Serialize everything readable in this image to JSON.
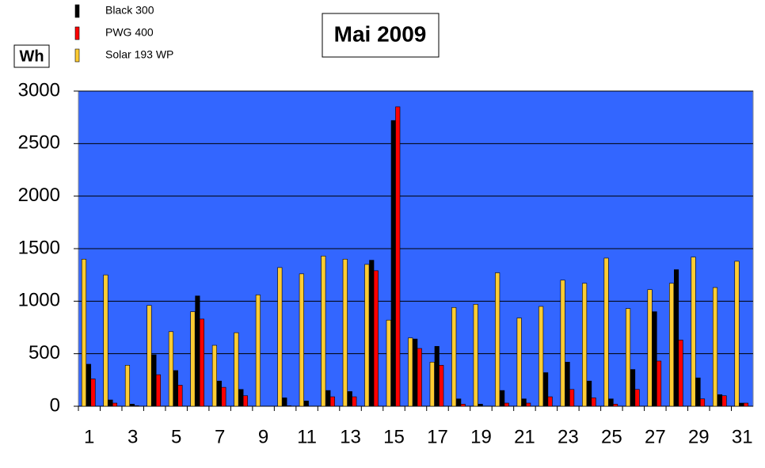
{
  "chart_data": {
    "type": "bar",
    "title": "Mai 2009",
    "y_label": "Wh",
    "categories": [
      "1",
      null,
      "3",
      null,
      "5",
      null,
      "7",
      null,
      "9",
      null,
      "11",
      null,
      "13",
      null,
      "15",
      null,
      "17",
      null,
      "19",
      null,
      "21",
      null,
      "23",
      null,
      "25",
      null,
      "27",
      null,
      "29",
      null,
      "31"
    ],
    "series": [
      {
        "name": "Black 300",
        "color": "#000000",
        "values": [
          400,
          60,
          20,
          490,
          340,
          1050,
          240,
          160,
          0,
          80,
          50,
          150,
          140,
          1390,
          2720,
          640,
          570,
          70,
          20,
          150,
          70,
          320,
          420,
          240,
          70,
          350,
          900,
          1300,
          270,
          110,
          30
        ]
      },
      {
        "name": "PWG 400",
        "color": "#ff0000",
        "values": [
          260,
          30,
          5,
          300,
          200,
          830,
          180,
          100,
          0,
          5,
          0,
          90,
          90,
          1290,
          2850,
          550,
          390,
          20,
          0,
          30,
          30,
          90,
          160,
          80,
          20,
          160,
          430,
          630,
          70,
          100,
          30
        ]
      },
      {
        "name": "Solar 193 WP",
        "color": "#ffcc33",
        "values": [
          1400,
          1250,
          390,
          960,
          710,
          900,
          580,
          700,
          1060,
          1320,
          1260,
          1430,
          1400,
          1350,
          820,
          650,
          420,
          940,
          970,
          1270,
          840,
          950,
          1200,
          1170,
          1410,
          930,
          1110,
          1170,
          1420,
          1130,
          1380
        ]
      }
    ],
    "ylim": [
      0,
      3000
    ],
    "yticks": [
      0,
      500,
      1000,
      1500,
      2000,
      2500,
      3000
    ],
    "grid": true,
    "plot_background": "#3366ff"
  }
}
